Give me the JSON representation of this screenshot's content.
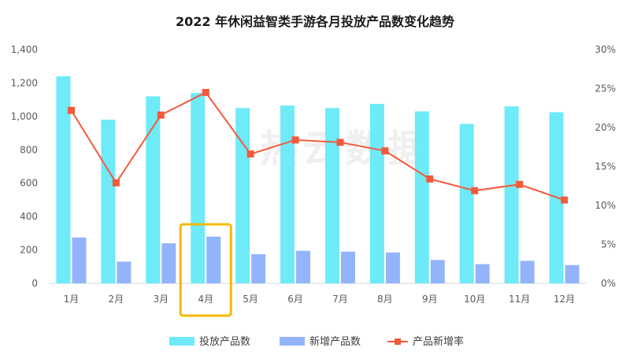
{
  "title": "2022 年休闲益智类手游各月投放产品数变化趋势",
  "watermark": "热云数据",
  "highlight_month": "4月",
  "colors": {
    "bar_primary": "#6EEAF8",
    "bar_secondary": "#93B4FA",
    "line": "#F4593B",
    "highlight": "#F5B800",
    "axis": "#D9D9D9"
  },
  "chart_data": {
    "type": "bar",
    "categories": [
      "1月",
      "2月",
      "3月",
      "4月",
      "5月",
      "6月",
      "7月",
      "8月",
      "9月",
      "10月",
      "11月",
      "12月"
    ],
    "series": [
      {
        "name": "投放产品数",
        "type": "bar",
        "axis": "left",
        "values": [
          1240,
          980,
          1120,
          1140,
          1050,
          1065,
          1050,
          1075,
          1030,
          955,
          1060,
          1025
        ]
      },
      {
        "name": "新增产品数",
        "type": "bar",
        "axis": "left",
        "values": [
          275,
          130,
          240,
          280,
          175,
          195,
          190,
          185,
          140,
          115,
          135,
          110
        ]
      },
      {
        "name": "产品新增率",
        "type": "line",
        "axis": "right",
        "values": [
          22.2,
          12.9,
          21.6,
          24.5,
          16.6,
          18.4,
          18.1,
          17.0,
          13.4,
          11.9,
          12.7,
          10.7
        ]
      }
    ],
    "y_left": {
      "min": 0,
      "max": 1400,
      "step": 200,
      "tick_labels": [
        "0",
        "200",
        "400",
        "600",
        "800",
        "1,000",
        "1,200",
        "1,400"
      ]
    },
    "y_right": {
      "min": 0,
      "max": 30,
      "step": 5,
      "tick_labels": [
        "0%",
        "5%",
        "10%",
        "15%",
        "20%",
        "25%",
        "30%"
      ]
    },
    "grid": false,
    "legend_position": "bottom"
  }
}
